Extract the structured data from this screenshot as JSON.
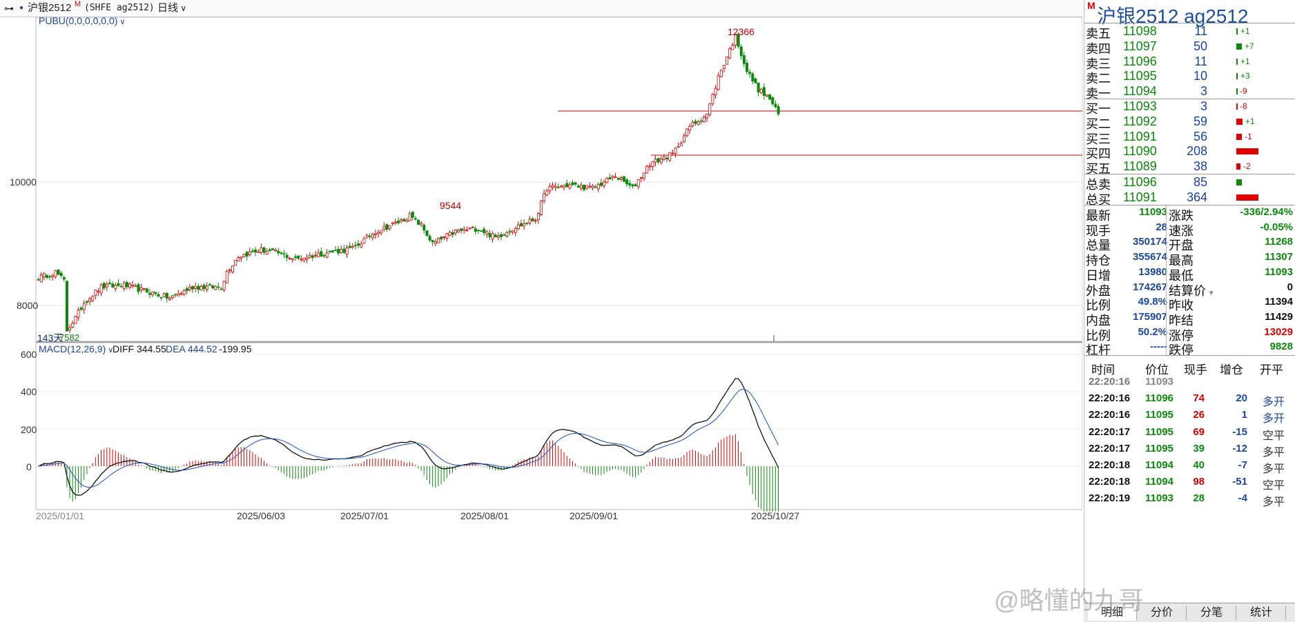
{
  "toolbar": {
    "contract_label": "沪银2512",
    "main_flag": "M",
    "exchange": "(SHFE ag2512)",
    "period": "日线"
  },
  "indicators": {
    "main": "PUBU(0,0,0,0,0,0)",
    "macd_label": "MACD(12,26,9)",
    "diff_label": "DIFF 344.55",
    "dea_label": "DEA 444.52",
    "macd_value": "-199.95"
  },
  "chart_data": {
    "type": "candlestick",
    "price_axis": {
      "ticks": [
        "10000",
        "8000"
      ]
    },
    "macd_axis": {
      "ticks": [
        "600",
        "400",
        "200",
        "0"
      ]
    },
    "date_labels": [
      "2025/06/03",
      "2025/07/01",
      "2025/08/01",
      "2025/09/01",
      "2025/10/27"
    ],
    "start_date_label": "2025/01/01",
    "annotations": {
      "high": "12366",
      "mid_high": "9544",
      "low": "7582",
      "days": "143天"
    },
    "candles": []
  },
  "quote": {
    "title": "沪银2512  ag2512",
    "flag": "M",
    "asks": [
      {
        "label": "卖五",
        "price": "11098",
        "vol": "11",
        "chg": "+1",
        "bar": 2
      },
      {
        "label": "卖四",
        "price": "11097",
        "vol": "50",
        "chg": "+7",
        "bar": 8
      },
      {
        "label": "卖三",
        "price": "11096",
        "vol": "11",
        "chg": "+1",
        "bar": 2
      },
      {
        "label": "卖二",
        "price": "11095",
        "vol": "10",
        "chg": "+3",
        "bar": 2
      },
      {
        "label": "卖一",
        "price": "11094",
        "vol": "3",
        "chg": "-9",
        "bar": 1
      }
    ],
    "bids": [
      {
        "label": "买一",
        "price": "11093",
        "vol": "3",
        "chg": "-8",
        "bar": 1
      },
      {
        "label": "买二",
        "price": "11092",
        "vol": "59",
        "chg": "+1",
        "bar": 9
      },
      {
        "label": "买三",
        "price": "11091",
        "vol": "56",
        "chg": "-1",
        "bar": 8
      },
      {
        "label": "买四",
        "price": "11090",
        "vol": "208",
        "chg": "",
        "bar": 32
      },
      {
        "label": "买五",
        "price": "11089",
        "vol": "38",
        "chg": "-2",
        "bar": 6
      }
    ],
    "totals": [
      {
        "label": "总卖",
        "price": "11096",
        "vol": "85",
        "bar": 8
      },
      {
        "label": "总买",
        "price": "11091",
        "vol": "364",
        "bar": 32
      }
    ],
    "stats_left": [
      {
        "label": "最新",
        "value": "11093"
      },
      {
        "label": "现手",
        "value": "28"
      },
      {
        "label": "总量",
        "value": "350174"
      },
      {
        "label": "持仓",
        "value": "355674"
      },
      {
        "label": "日增",
        "value": "13980"
      },
      {
        "label": "外盘",
        "value": "174267"
      },
      {
        "label": "比例",
        "value": "49.8%"
      },
      {
        "label": "内盘",
        "value": "175907"
      },
      {
        "label": "比例",
        "value": "50.2%"
      },
      {
        "label": "杠杆",
        "value": "-----"
      }
    ],
    "stats_right": [
      {
        "label": "涨跌",
        "value": "-336/2.94%"
      },
      {
        "label": "速涨",
        "value": "-0.05%"
      },
      {
        "label": "开盘",
        "value": "11268"
      },
      {
        "label": "最高",
        "value": "11307"
      },
      {
        "label": "最低",
        "value": "11093"
      },
      {
        "label": "结算价",
        "value": "0"
      },
      {
        "label": "昨收",
        "value": "11394"
      },
      {
        "label": "昨结",
        "value": "11429"
      },
      {
        "label": "涨停",
        "value": "13029"
      },
      {
        "label": "跌停",
        "value": "9828"
      }
    ],
    "ticks_header": [
      "时间",
      "价位",
      "现手",
      "增仓",
      "开平"
    ],
    "ticks": [
      {
        "time": "22:20:16",
        "price": "11093",
        "vol": "",
        "oi": "",
        "type": ""
      },
      {
        "time": "22:20:16",
        "price": "11096",
        "vol": "74",
        "oi": "20",
        "type": "多开"
      },
      {
        "time": "22:20:16",
        "price": "11095",
        "vol": "26",
        "oi": "1",
        "type": "多开"
      },
      {
        "time": "22:20:17",
        "price": "11095",
        "vol": "69",
        "oi": "-15",
        "type": "空平"
      },
      {
        "time": "22:20:17",
        "price": "11095",
        "vol": "39",
        "oi": "-12",
        "type": "多平"
      },
      {
        "time": "22:20:18",
        "price": "11094",
        "vol": "40",
        "oi": "-7",
        "type": "多平"
      },
      {
        "time": "22:20:18",
        "price": "11094",
        "vol": "98",
        "oi": "-51",
        "type": "空平"
      },
      {
        "time": "22:20:19",
        "price": "11093",
        "vol": "28",
        "oi": "-4",
        "type": "多平"
      }
    ],
    "tabs": [
      "明细",
      "分价",
      "分笔",
      "统计"
    ]
  },
  "watermark": "@略懂的九哥"
}
